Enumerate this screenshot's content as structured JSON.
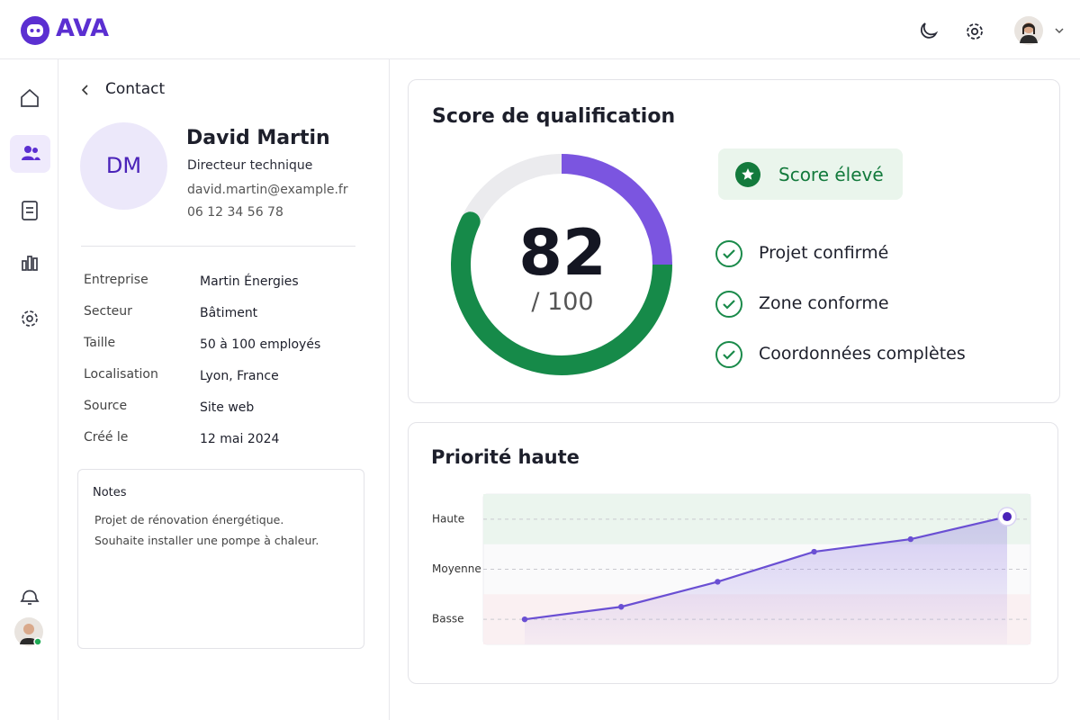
{
  "header": {
    "brand": "AVA"
  },
  "contact": {
    "back_label": "Contact",
    "initials": "DM",
    "name": "David Martin",
    "role": "Directeur technique",
    "email": "david.martin@example.fr",
    "phone": "06 12 34 56 78",
    "fields": [
      {
        "label": "Entreprise",
        "value": "Martin Énergies"
      },
      {
        "label": "Secteur",
        "value": "Bâtiment"
      },
      {
        "label": "Taille",
        "value": "50 à 100 employés"
      },
      {
        "label": "Localisation",
        "value": "Lyon, France"
      },
      {
        "label": "Source",
        "value": "Site web"
      },
      {
        "label": "Créé le",
        "value": "12 mai 2024"
      }
    ],
    "notes": {
      "title": "Notes",
      "lines": [
        "Projet de rénovation énergétique.",
        "Souhaite installer une pompe à chaleur."
      ]
    }
  },
  "score_card": {
    "title": "Score de qualification",
    "badge": "Score élevé",
    "score": 82,
    "max": {
      "value": 100,
      "label": "/ 100"
    },
    "checks": [
      "Projet confirmé",
      "Zone conforme",
      "Coordonnées complètes"
    ]
  },
  "chart_data": {
    "type": "line",
    "title": "Priorité haute",
    "color": "#6a4fd3",
    "values": [
      0,
      0.25,
      0.75,
      1.35,
      1.6,
      2.05
    ],
    "ylim": [
      -0.5,
      2.5
    ],
    "yticks": [
      {
        "value": 0,
        "label": "Basse"
      },
      {
        "value": 1,
        "label": "Moyenne"
      },
      {
        "value": 2,
        "label": "Haute"
      }
    ],
    "grid": true
  }
}
